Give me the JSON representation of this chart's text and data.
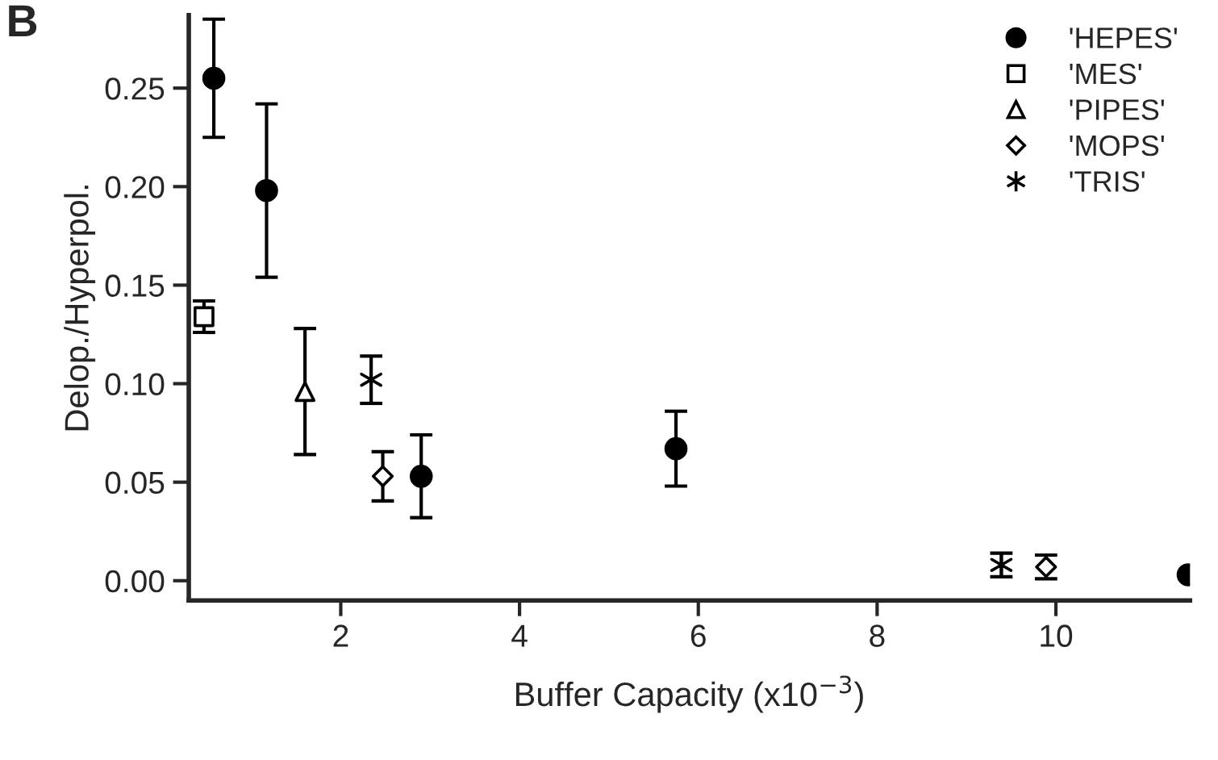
{
  "chart_data": {
    "type": "scatter",
    "xlabel": "Buffer Capacity (x10$^{−3}$)",
    "ylabel": "Delop./Hyperpol.",
    "annotations": [
      "B"
    ],
    "xlim": [
      0.3,
      11.5
    ],
    "xticks": [
      2,
      4,
      6,
      8,
      10
    ],
    "ylim": [
      -0.01,
      0.287
    ],
    "yticks": [
      {
        "value": 0,
        "label": "0.00"
      },
      {
        "value": 0.05,
        "label": "0.05"
      },
      {
        "value": 0.1,
        "label": "0.10"
      },
      {
        "value": 0.15,
        "label": "0.15"
      },
      {
        "value": 0.2,
        "label": "0.20"
      },
      {
        "value": 0.25,
        "label": "0.25"
      }
    ],
    "grid": false,
    "legend": "top right",
    "series": [
      {
        "name": "'HEPES'",
        "color": "#000000",
        "marker": "circle",
        "x": [
          0.58,
          1.17,
          2.9,
          5.75,
          11.48
        ],
        "values": [
          0.255,
          0.198,
          0.053,
          0.067,
          0.003
        ],
        "errors": [
          0.03,
          0.044,
          0.021,
          0.019,
          null
        ]
      },
      {
        "name": "'MES'",
        "color": "#000000",
        "marker": "square",
        "x": [
          0.47
        ],
        "values": [
          0.134
        ],
        "errors": [
          0.008
        ]
      },
      {
        "name": "'PIPES'",
        "color": "#000000",
        "marker": "triangle",
        "x": [
          1.6
        ],
        "values": [
          0.096
        ],
        "errors": [
          0.032
        ]
      },
      {
        "name": "'MOPS'",
        "color": "#000000",
        "marker": "diamond",
        "x": [
          2.47,
          9.89
        ],
        "values": [
          0.053,
          0.007
        ],
        "errors": [
          0.0125,
          0.006
        ]
      },
      {
        "name": "'TRIS'",
        "color": "#000000",
        "marker": "cross",
        "x": [
          2.34,
          9.39
        ],
        "values": [
          0.102,
          0.008
        ],
        "errors": [
          0.012,
          0.006
        ]
      }
    ]
  }
}
